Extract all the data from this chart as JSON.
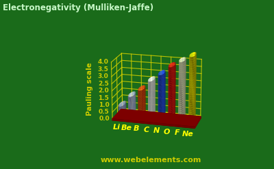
{
  "title": "Electronegativity (Mulliken-Jaffe)",
  "ylabel": "Pauling scale",
  "watermark": "www.webelements.com",
  "elements": [
    "Li",
    "Be",
    "B",
    "C",
    "N",
    "O",
    "F",
    "Ne"
  ],
  "values": [
    0.75,
    1.5,
    2.0,
    2.7,
    3.2,
    3.8,
    4.2,
    4.6
  ],
  "bar_colors": [
    "#9090c8",
    "#a8acd8",
    "#d84010",
    "#e0e0e0",
    "#2244dd",
    "#dd1010",
    "#d8d8b0",
    "#d8cc00"
  ],
  "background_color": "#1a6b1a",
  "platform_color": "#8b0000",
  "grid_color": "#cccc00",
  "text_color": "#cccc00",
  "title_color": "#c8f8c8",
  "watermark_color": "#cccc00",
  "ylim": [
    0.0,
    4.5
  ],
  "yticks": [
    0.0,
    0.5,
    1.0,
    1.5,
    2.0,
    2.5,
    3.0,
    3.5,
    4.0
  ],
  "figsize": [
    4.0,
    2.47
  ],
  "dpi": 100
}
